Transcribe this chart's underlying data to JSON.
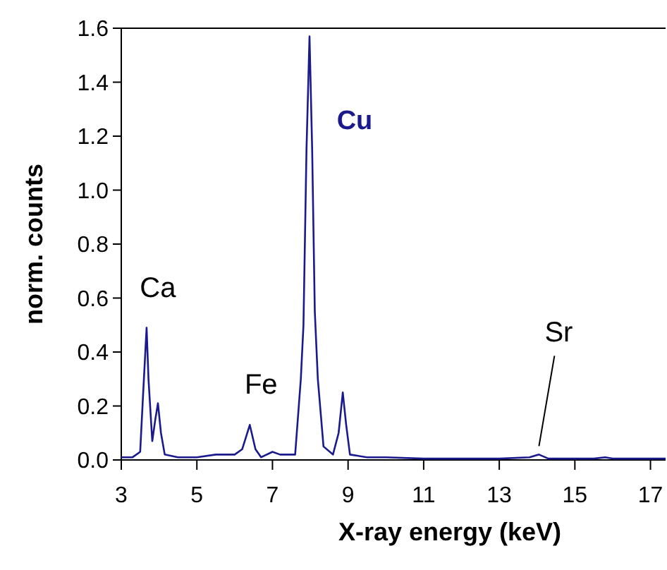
{
  "chart_data": {
    "type": "line",
    "xlabel": "X-ray energy (keV)",
    "ylabel": "norm. counts",
    "xlim": [
      3,
      17.4
    ],
    "xticks": [
      3,
      5,
      7,
      9,
      11,
      13,
      15,
      17
    ],
    "ylim": [
      0,
      1.6
    ],
    "yticks": [
      {
        "value": 0,
        "label": "0.0"
      },
      0.2,
      0.4,
      0.6,
      0.8,
      {
        "value": 1,
        "label": "1.0"
      },
      1.2,
      1.4,
      1.6
    ],
    "grid": false,
    "marker": "none",
    "line_style": "solid",
    "series": [
      {
        "color": "#1a1a8c",
        "x": [
          3.0,
          3.3,
          3.5,
          3.58,
          3.67,
          3.72,
          3.82,
          3.9,
          3.97,
          4.05,
          4.15,
          4.5,
          5.0,
          5.5,
          6.0,
          6.2,
          6.4,
          6.55,
          6.7,
          7.0,
          7.2,
          7.6,
          7.75,
          7.82,
          7.9,
          7.98,
          8.05,
          8.12,
          8.2,
          8.35,
          8.6,
          8.75,
          8.86,
          8.95,
          9.05,
          9.5,
          10,
          11,
          12,
          13,
          13.8,
          14.05,
          14.3,
          15.5,
          15.8,
          16,
          17.4
        ],
        "values": [
          0.01,
          0.01,
          0.03,
          0.25,
          0.49,
          0.3,
          0.07,
          0.15,
          0.21,
          0.1,
          0.02,
          0.01,
          0.01,
          0.02,
          0.02,
          0.04,
          0.13,
          0.04,
          0.01,
          0.03,
          0.02,
          0.02,
          0.3,
          0.5,
          1.15,
          1.57,
          1.15,
          0.55,
          0.3,
          0.05,
          0.02,
          0.1,
          0.25,
          0.13,
          0.02,
          0.01,
          0.01,
          0.005,
          0.005,
          0.005,
          0.01,
          0.02,
          0.005,
          0.005,
          0.01,
          0.005,
          0.005
        ]
      }
    ],
    "annotations": [
      {
        "text": "Ca",
        "x": 3.67,
        "y": 0.49
      },
      {
        "text": "Fe",
        "x": 6.4,
        "y": 0.13
      },
      {
        "text": "Cu",
        "x": 7.98,
        "y": 1.57
      },
      {
        "text": "Sr",
        "x": 14.05,
        "y": 0.02
      }
    ]
  }
}
